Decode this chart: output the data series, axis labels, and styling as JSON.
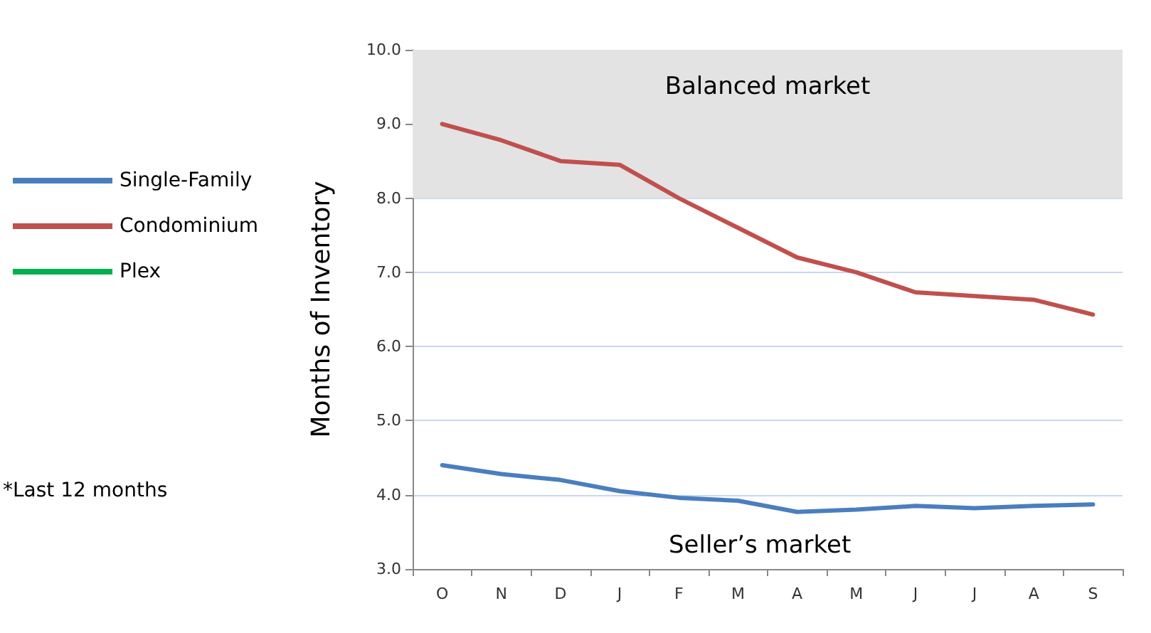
{
  "chart_data": {
    "type": "line",
    "ylabel": "Months of Inventory",
    "categories": [
      "O",
      "N",
      "D",
      "J",
      "F",
      "M",
      "A",
      "M",
      "J",
      "J",
      "A",
      "S"
    ],
    "series": [
      {
        "name": "Single-Family",
        "color": "#4a7ebf",
        "values": [
          4.4,
          4.28,
          4.2,
          4.05,
          3.96,
          3.92,
          3.77,
          3.8,
          3.85,
          3.82,
          3.85,
          3.87
        ]
      },
      {
        "name": "Condominium",
        "color": "#c0504d",
        "values": [
          9.0,
          8.78,
          8.5,
          8.45,
          8.0,
          7.6,
          7.2,
          7.0,
          6.73,
          6.68,
          6.63,
          6.43
        ]
      },
      {
        "name": "Plex",
        "color": "#00b050",
        "values": [
          null,
          null,
          null,
          null,
          null,
          null,
          null,
          null,
          null,
          null,
          null,
          null
        ]
      }
    ],
    "ylim": [
      3,
      10
    ],
    "yticks": [
      {
        "value": 3,
        "label": "3.0"
      },
      {
        "value": 4,
        "label": "4.0"
      },
      {
        "value": 5,
        "label": "5.0"
      },
      {
        "value": 6,
        "label": "6.0"
      },
      {
        "value": 7,
        "label": "7.0"
      },
      {
        "value": 8,
        "label": "8.0"
      },
      {
        "value": 9,
        "label": "9.0"
      },
      {
        "value": 10,
        "label": "10.0"
      }
    ],
    "bands": [
      {
        "axis": "y",
        "from": 8,
        "to": 10,
        "label": "Balanced market",
        "color": "#e3e3e3"
      }
    ],
    "annotations": [
      "Seller’s market",
      "*Last 12 months"
    ],
    "grid": "y",
    "legend": "left",
    "marker": "none",
    "line_style": "solid"
  }
}
